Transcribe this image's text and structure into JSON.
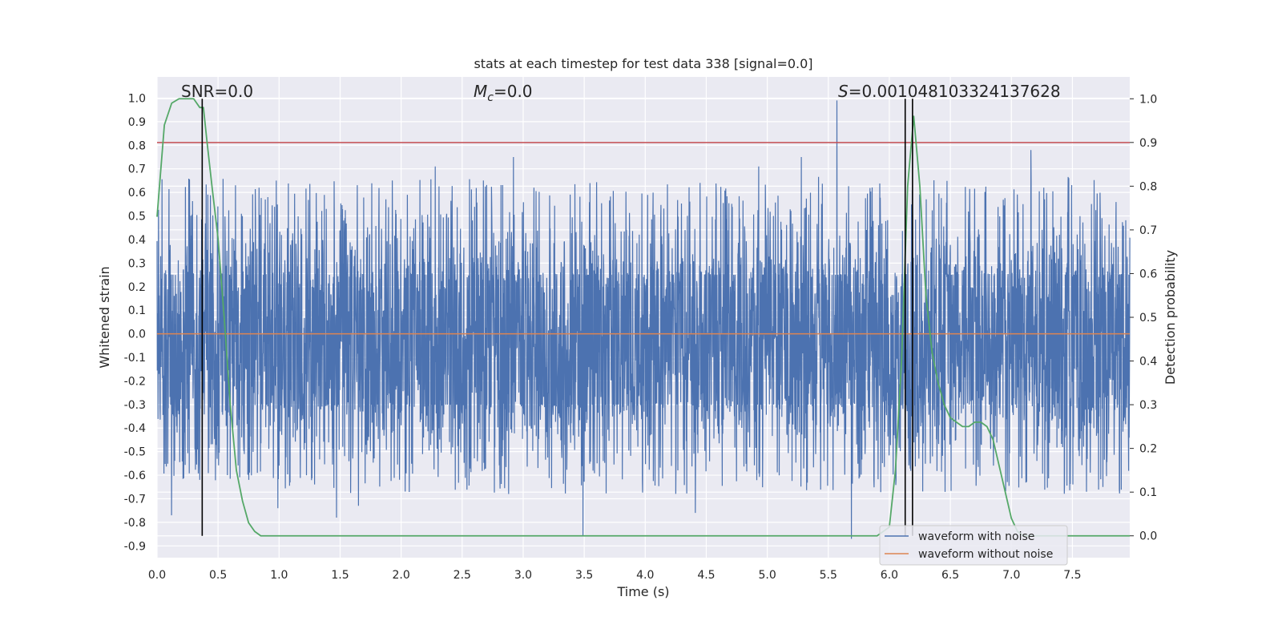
{
  "chart_data": {
    "type": "line",
    "title": "stats at each timestep for test data 338 [signal=0.0]",
    "xlabel": "Time (s)",
    "ylabel": "Whitened strain",
    "y2label": "Detection probability",
    "xlim": [
      0.0,
      7.97
    ],
    "ylim": [
      -0.95,
      1.09
    ],
    "y2lim": [
      -0.05,
      1.05
    ],
    "grid": true,
    "legend_position": "bottom-right",
    "x_ticks": [
      "0.0",
      "0.5",
      "1.0",
      "1.5",
      "2.0",
      "2.5",
      "3.0",
      "3.5",
      "4.0",
      "4.5",
      "5.0",
      "5.5",
      "6.0",
      "6.5",
      "7.0",
      "7.5"
    ],
    "y_ticks": [
      "1.0",
      "0.9",
      "0.8",
      "0.7",
      "0.6",
      "0.5",
      "0.4",
      "0.3",
      "0.2",
      "0.1",
      "0.0",
      "-0.1",
      "-0.2",
      "-0.3",
      "-0.4",
      "-0.5",
      "-0.6",
      "-0.7",
      "-0.8",
      "-0.9"
    ],
    "y2_ticks": [
      "1.0",
      "0.9",
      "0.8",
      "0.7",
      "0.6",
      "0.5",
      "0.4",
      "0.3",
      "0.2",
      "0.1",
      "0.0"
    ],
    "annotations": {
      "snr": "SNR=0.0",
      "mc_symbol": "M",
      "mc_sub": "c",
      "mc_value": "=0.0",
      "s_symbol": "S",
      "s_value": "=0.001048103324137628"
    },
    "series": [
      {
        "name": "waveform with noise",
        "color": "#4c72b0",
        "sample_rate": 512,
        "noise_stats": {
          "core_upper": 0.25,
          "core_lower": -0.3,
          "max": 1.0,
          "min": -0.9
        },
        "peaks": [
          {
            "x": 0.12,
            "y": -0.77
          },
          {
            "x": 0.35,
            "y": -0.62
          },
          {
            "x": 0.99,
            "y": -0.74
          },
          {
            "x": 1.47,
            "y": -0.78
          },
          {
            "x": 1.65,
            "y": -0.73
          },
          {
            "x": 2.28,
            "y": 0.71
          },
          {
            "x": 2.92,
            "y": 0.75
          },
          {
            "x": 3.49,
            "y": -0.86
          },
          {
            "x": 4.41,
            "y": -0.76
          },
          {
            "x": 4.93,
            "y": 0.71
          },
          {
            "x": 5.28,
            "y": 0.75
          },
          {
            "x": 5.57,
            "y": 0.99
          },
          {
            "x": 5.69,
            "y": -0.87
          },
          {
            "x": 7.16,
            "y": 0.78
          },
          {
            "x": 7.75,
            "y": -0.65
          }
        ]
      },
      {
        "name": "waveform without noise",
        "color": "#dd8452",
        "x": [
          0.0,
          7.97
        ],
        "y": [
          0.0,
          0.0
        ]
      },
      {
        "name": "detection probability",
        "color": "#55a868",
        "axis": "y2",
        "x": [
          0.0,
          0.06,
          0.12,
          0.18,
          0.24,
          0.3,
          0.35,
          0.38,
          0.41,
          0.45,
          0.5,
          0.55,
          0.6,
          0.65,
          0.7,
          0.75,
          0.8,
          0.85,
          0.9,
          1.0,
          2.0,
          3.0,
          4.0,
          5.0,
          5.5,
          5.9,
          6.0,
          6.05,
          6.1,
          6.15,
          6.2,
          6.25,
          6.3,
          6.35,
          6.4,
          6.45,
          6.5,
          6.55,
          6.6,
          6.65,
          6.7,
          6.75,
          6.8,
          6.85,
          6.9,
          6.95,
          7.0,
          7.05,
          7.1,
          7.2,
          7.5,
          7.97
        ],
        "y": [
          0.73,
          0.94,
          0.99,
          1.0,
          1.0,
          1.0,
          0.98,
          0.98,
          0.9,
          0.8,
          0.68,
          0.5,
          0.3,
          0.15,
          0.08,
          0.03,
          0.01,
          0.0,
          0.0,
          0.0,
          0.0,
          0.0,
          0.0,
          0.0,
          0.0,
          0.0,
          0.02,
          0.15,
          0.4,
          0.8,
          0.96,
          0.8,
          0.55,
          0.42,
          0.35,
          0.3,
          0.27,
          0.26,
          0.25,
          0.25,
          0.26,
          0.26,
          0.25,
          0.22,
          0.16,
          0.1,
          0.04,
          0.01,
          0.0,
          0.0,
          0.0,
          0.0
        ]
      }
    ],
    "threshold_line": {
      "y2": 0.9,
      "color": "#c44e52"
    },
    "marker_lines": [
      {
        "x": 0.37,
        "color": "#000000"
      },
      {
        "x": 6.13,
        "color": "#000000"
      },
      {
        "x": 6.19,
        "color": "#000000"
      }
    ]
  }
}
